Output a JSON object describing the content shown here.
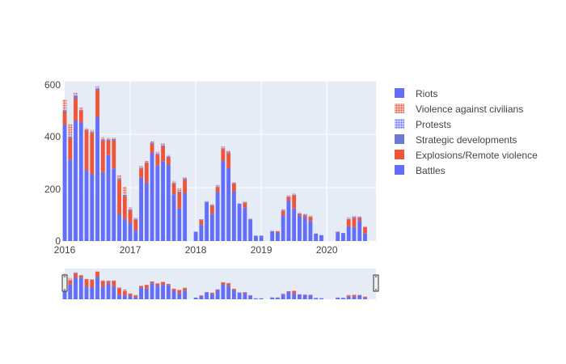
{
  "chart_data": {
    "type": "bar",
    "barmode": "stack",
    "title": "",
    "xlabel": "",
    "ylabel": "",
    "ylim": [
      0,
      600
    ],
    "y_ticks": [
      "0",
      "200",
      "400",
      "600"
    ],
    "x_ticks": [
      "2016",
      "2017",
      "2018",
      "2019",
      "2020"
    ],
    "x_start": "2016-01",
    "x_end": "2020-10",
    "range_slider": true,
    "colors": {
      "Battles": "#636efa",
      "Explosions/Remote violence": "#ef553b",
      "Strategic developments": "#6f79d4",
      "Protests": "#8b93f7",
      "Violence against civilians": "#e35a44",
      "Riots": "#636efa",
      "plot_bg": "#e5ecf6",
      "grid": "#ffffff"
    },
    "legend": [
      "Riots",
      "Violence against civilians",
      "Protests",
      "Strategic developments",
      "Explosions/Remote violence",
      "Battles"
    ],
    "legend_patterns": {
      "Riots": "solid",
      "Violence against civilians": "dots",
      "Protests": "dots",
      "Strategic developments": "solid",
      "Explosions/Remote violence": "solid",
      "Battles": "solid"
    },
    "categories": [
      "2016-01",
      "2016-02",
      "2016-03",
      "2016-04",
      "2016-05",
      "2016-06",
      "2016-07",
      "2016-08",
      "2016-09",
      "2016-10",
      "2016-11",
      "2016-12",
      "2017-01",
      "2017-02",
      "2017-03",
      "2017-04",
      "2017-05",
      "2017-06",
      "2017-07",
      "2017-08",
      "2017-09",
      "2017-10",
      "2017-11",
      "2017-12",
      "2018-01",
      "2018-02",
      "2018-03",
      "2018-04",
      "2018-05",
      "2018-06",
      "2018-07",
      "2018-08",
      "2018-09",
      "2018-10",
      "2018-11",
      "2018-12",
      "2019-01",
      "2019-02",
      "2019-03",
      "2019-04",
      "2019-05",
      "2019-06",
      "2019-07",
      "2019-08",
      "2019-09",
      "2019-10",
      "2019-11",
      "2019-12",
      "2020-01",
      "2020-02",
      "2020-03",
      "2020-04",
      "2020-05",
      "2020-06",
      "2020-07",
      "2020-08"
    ],
    "series": [
      {
        "name": "Battles",
        "values": [
          435,
          305,
          450,
          445,
          265,
          250,
          465,
          258,
          322,
          272,
          100,
          83,
          67,
          39,
          237,
          218,
          330,
          283,
          298,
          287,
          175,
          122,
          180,
          0,
          35,
          60,
          145,
          102,
          183,
          300,
          274,
          185,
          140,
          125,
          80,
          20,
          20,
          0,
          35,
          32,
          97,
          150,
          122,
          95,
          88,
          75,
          28,
          22,
          0,
          0,
          32,
          30,
          55,
          52,
          75,
          28
        ]
      },
      {
        "name": "Explosions/Remote violence",
        "values": [
          50,
          82,
          85,
          45,
          150,
          155,
          100,
          118,
          55,
          105,
          130,
          85,
          48,
          40,
          35,
          75,
          35,
          40,
          55,
          27,
          40,
          60,
          50,
          0,
          0,
          18,
          0,
          30,
          18,
          45,
          55,
          30,
          0,
          18,
          0,
          0,
          0,
          0,
          0,
          5,
          15,
          15,
          50,
          5,
          8,
          15,
          0,
          0,
          0,
          0,
          0,
          0,
          25,
          35,
          10,
          25
        ]
      },
      {
        "name": "Strategic developments",
        "values": [
          5,
          5,
          10,
          2,
          2,
          3,
          5,
          5,
          2,
          5,
          3,
          5,
          3,
          3,
          3,
          2,
          3,
          3,
          5,
          3,
          2,
          3,
          3,
          0,
          0,
          2,
          3,
          2,
          3,
          3,
          3,
          2,
          0,
          2,
          2,
          0,
          0,
          0,
          2,
          0,
          2,
          2,
          2,
          3,
          2,
          2,
          0,
          0,
          0,
          0,
          2,
          0,
          3,
          2,
          3,
          0
        ]
      },
      {
        "name": "Protests",
        "values": [
          5,
          5,
          5,
          3,
          3,
          3,
          5,
          3,
          3,
          3,
          3,
          5,
          3,
          3,
          3,
          2,
          3,
          3,
          3,
          3,
          3,
          3,
          3,
          0,
          0,
          2,
          2,
          2,
          3,
          3,
          3,
          2,
          2,
          2,
          2,
          0,
          0,
          0,
          2,
          0,
          3,
          2,
          3,
          2,
          2,
          2,
          0,
          0,
          0,
          0,
          0,
          0,
          3,
          3,
          2,
          0
        ]
      },
      {
        "name": "Violence against civilians",
        "values": [
          35,
          40,
          5,
          5,
          3,
          5,
          5,
          5,
          5,
          3,
          10,
          25,
          5,
          3,
          3,
          3,
          3,
          5,
          5,
          3,
          5,
          10,
          3,
          0,
          0,
          0,
          0,
          2,
          3,
          3,
          3,
          2,
          0,
          2,
          2,
          0,
          0,
          0,
          2,
          0,
          2,
          2,
          2,
          2,
          2,
          2,
          0,
          0,
          0,
          0,
          2,
          0,
          3,
          3,
          3,
          0
        ]
      },
      {
        "name": "Riots",
        "values": [
          0,
          0,
          0,
          0,
          0,
          0,
          0,
          0,
          0,
          0,
          0,
          0,
          0,
          0,
          0,
          0,
          0,
          0,
          0,
          0,
          0,
          0,
          0,
          0,
          0,
          0,
          0,
          0,
          0,
          0,
          0,
          0,
          0,
          0,
          0,
          0,
          0,
          0,
          0,
          0,
          0,
          0,
          0,
          0,
          0,
          0,
          0,
          0,
          0,
          0,
          0,
          0,
          0,
          0,
          0,
          0
        ]
      }
    ]
  }
}
